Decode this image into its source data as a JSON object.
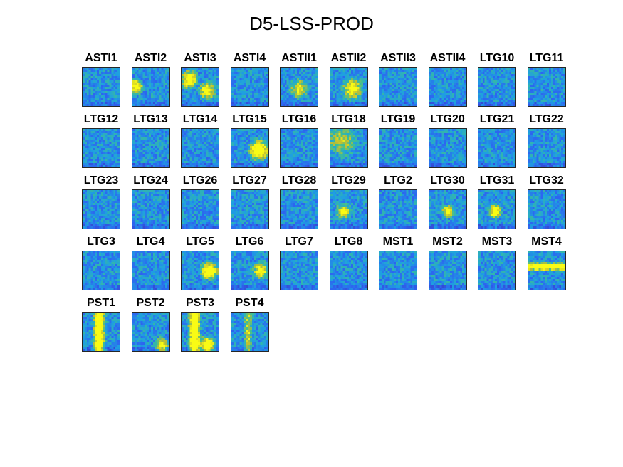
{
  "figure": {
    "title": "D5-LSS-PROD"
  },
  "colormap": {
    "name": "parula",
    "low": "#3e26a8",
    "mid": "#2aa3e0",
    "high": "#f9fb15"
  },
  "chart_data": {
    "type": "heatmap",
    "title": "D5-LSS-PROD",
    "layout": {
      "rows": 5,
      "cols": 10
    },
    "panels": [
      "ASTI1",
      "ASTI2",
      "ASTI3",
      "ASTI4",
      "ASTII1",
      "ASTII2",
      "ASTII3",
      "ASTII4",
      "LTG10",
      "LTG11",
      "LTG12",
      "LTG13",
      "LTG14",
      "LTG15",
      "LTG16",
      "LTG18",
      "LTG19",
      "LTG20",
      "LTG21",
      "LTG22",
      "LTG23",
      "LTG24",
      "LTG26",
      "LTG27",
      "LTG28",
      "LTG29",
      "LTG2",
      "LTG30",
      "LTG31",
      "LTG32",
      "LTG3",
      "LTG4",
      "LTG5",
      "LTG6",
      "LTG7",
      "LTG8",
      "MST1",
      "MST2",
      "MST3",
      "MST4",
      "PST1",
      "PST2",
      "PST3",
      "PST4"
    ]
  }
}
